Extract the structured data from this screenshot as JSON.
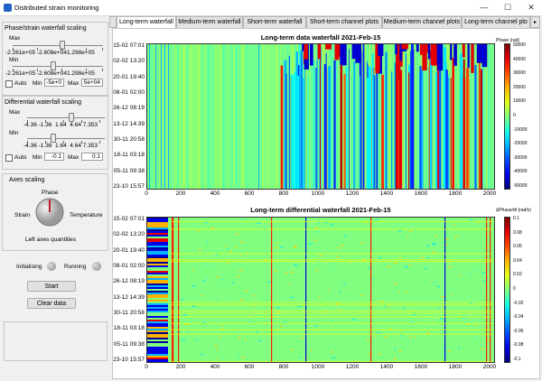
{
  "window": {
    "title": "Distributed strain monitoring",
    "minimize": "—",
    "maximize": "☐",
    "close": "✕"
  },
  "tabs": [
    "Long-term waterfall",
    "Medium-term waterfall",
    "Short-term waterfall",
    "Short-term channel plots",
    "Medium-term channel plots",
    "Long-term channel plo"
  ],
  "left": {
    "phase": {
      "title": "Phase/strain waterfall scaling",
      "max_label": "Max",
      "min_label": "Min",
      "max_ticks": "-2.261e+05 -2.608e+041.298e+05",
      "min_ticks": "-2.261e+05 -2.608e+041.298e+05",
      "auto_label": "Auto",
      "min_field_label": "Min",
      "min_value": "-5e+0",
      "max_field_label": "Max",
      "max_value": "5e+04"
    },
    "diff": {
      "title": "Differential waterfall scaling",
      "max_label": "Max",
      "min_label": "Min",
      "max_ticks": "-4.36 -1.36  1.64  4.64 7.353",
      "min_ticks": "-4.36 -1.36  1.64  4.64 7.353",
      "auto_label": "Auto",
      "min_field_label": "Min",
      "min_value": "-0.1",
      "max_field_label": "Max",
      "max_value": "0.1"
    },
    "axes": {
      "title": "Axes scaling",
      "phase": "Phase",
      "strain": "Strain",
      "temperature": "Temperature",
      "caption": "Left axes quantities"
    },
    "status": {
      "initialising": "Initialising",
      "running": "Running"
    },
    "start_button": "Start",
    "clear_button": "Clear data"
  },
  "plot1": {
    "title": "Long-term data waterfall 2021-Feb-15",
    "cb_label": "Phase (rad)",
    "yticks": [
      "15-02 07:01",
      "02-02 13:20",
      "20-01 19:40",
      "08-01 02:00",
      "26-12 08:19",
      "13-12 14:39",
      "30-11 20:58",
      "18-11 03:18",
      "05-11 09:38",
      "23-10 15:57"
    ],
    "xticks": [
      "0",
      "200",
      "400",
      "600",
      "800",
      "1000",
      "1200",
      "1400",
      "1600",
      "1800",
      "2000"
    ],
    "cbticks": [
      "50000",
      "40000",
      "30000",
      "20000",
      "10000",
      "0",
      "-10000",
      "-20000",
      "-30000",
      "-40000",
      "-50000"
    ]
  },
  "plot2": {
    "title": "Long-term differential waterfall 2021-Feb-15",
    "cb_label": "ΔPhase/dt (rad/s)",
    "yticks": [
      "15-02 07:01",
      "02-02 13:20",
      "20-01 19:40",
      "08-01 02:00",
      "26-12 08:19",
      "13-12 14:39",
      "30-11 20:58",
      "18-11 03:18",
      "05-11 09:38",
      "23-10 15:57"
    ],
    "xticks": [
      "0",
      "200",
      "400",
      "600",
      "800",
      "1000",
      "1200",
      "1400",
      "1600",
      "1800",
      "2000"
    ],
    "cbticks": [
      "0.1",
      "0.08",
      "0.06",
      "0.04",
      "0.02",
      "0",
      "-0.02",
      "-0.04",
      "-0.06",
      "-0.08",
      "-0.1"
    ]
  }
}
